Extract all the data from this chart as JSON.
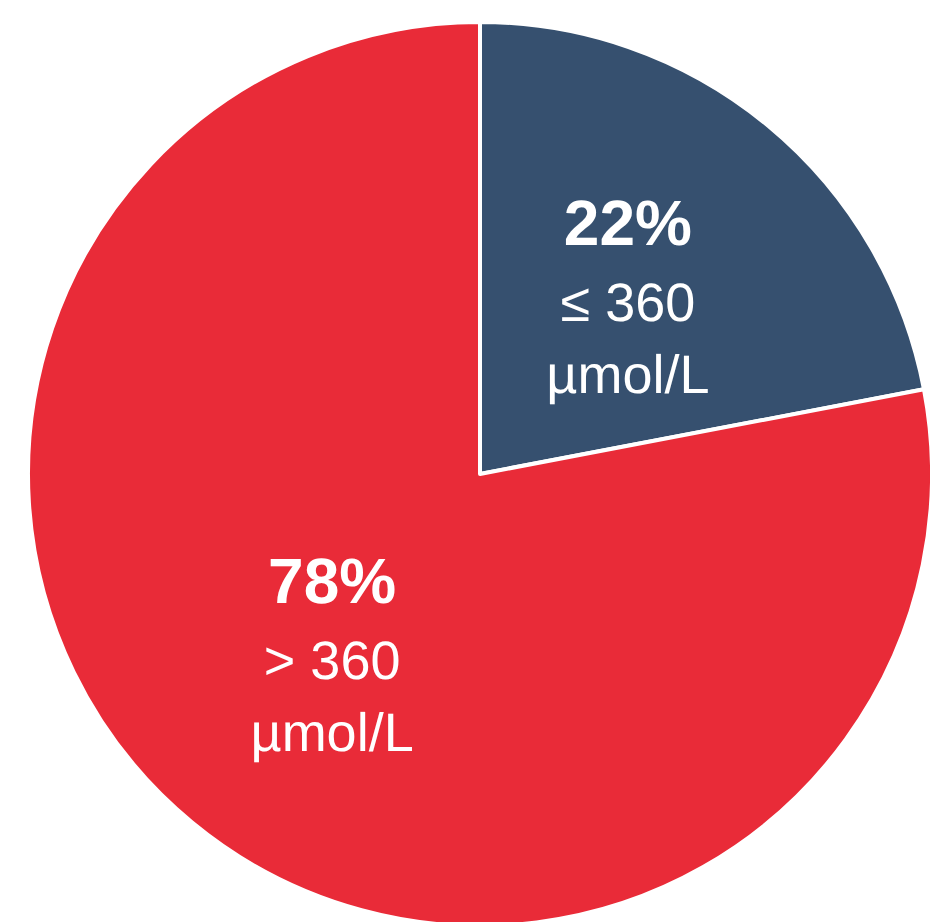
{
  "chart_data": {
    "type": "pie",
    "categories": [
      "≤ 360\nµmol/L",
      "> 360\nµmol/L"
    ],
    "values": [
      22,
      78
    ],
    "colors": [
      "#36506f",
      "#e92b38"
    ],
    "value_labels": [
      "22%",
      "78%"
    ],
    "legend": false
  }
}
